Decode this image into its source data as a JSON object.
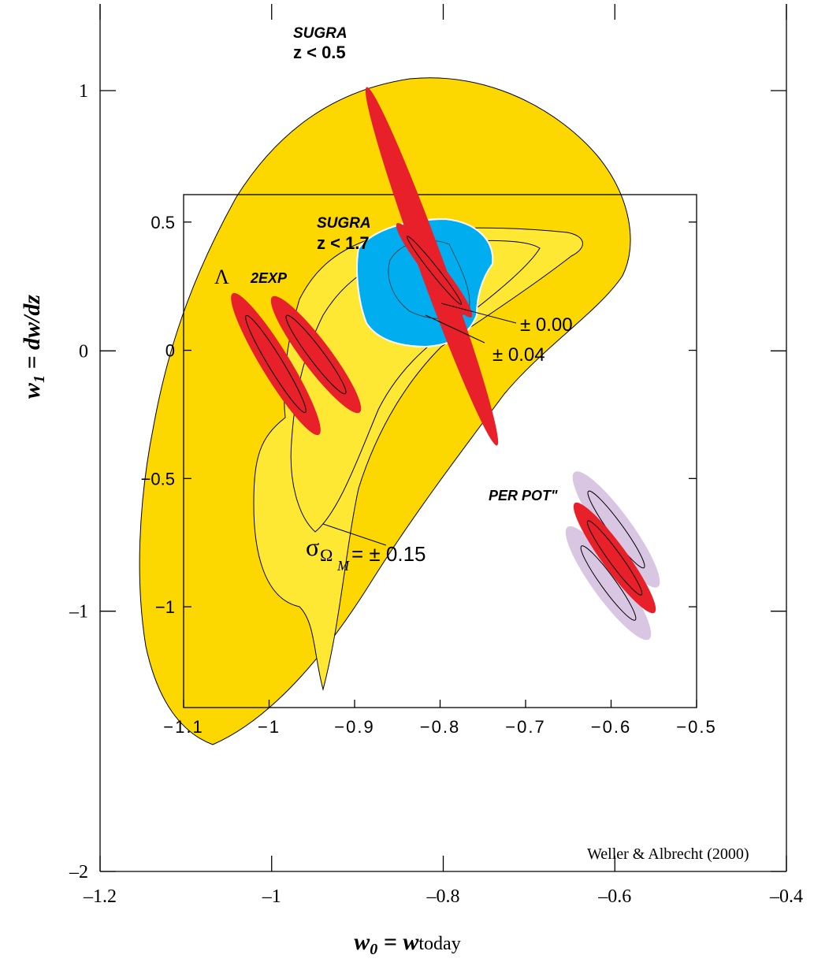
{
  "chart_data": [
    {
      "type": "contour",
      "x_label": [
        "w",
        "0",
        " = w",
        "today"
      ],
      "y_label": [
        "w",
        "1",
        " = dw/dz"
      ],
      "xlim": [
        -1.2,
        -0.4
      ],
      "ylim": [
        -2,
        1.333
      ],
      "xticks": [
        {
          "value": -1.2,
          "label": "–1.2"
        },
        {
          "value": -1,
          "label": "–1"
        },
        {
          "value": -0.8,
          "label": "–0.8"
        },
        {
          "value": -0.6,
          "label": "–0.6"
        },
        {
          "value": -0.4,
          "label": "–0.4"
        }
      ],
      "yticks": [
        1,
        0,
        {
          "value": -1,
          "label": "–1"
        },
        {
          "value": -2,
          "label": "–2"
        }
      ],
      "annotations": [
        "SUGRA",
        "z < 0.5",
        "SUGRA",
        "z < 1.7",
        "Λ",
        "2EXP",
        "PER POT\"",
        "± 0.00",
        "± 0.04",
        "σ",
        "Ω",
        "M",
        "= ± 0.15",
        "Weller & Albrecht (2000)"
      ]
    },
    {
      "type": "contour",
      "xlim": [
        -1.1,
        -0.5
      ],
      "ylim": [
        -1.393,
        0.607
      ],
      "xticks": [
        {
          "value": -1.1,
          "label": "−1.1"
        },
        {
          "value": -1,
          "label": "−1"
        },
        {
          "value": -0.9,
          "label": "−0.9"
        },
        {
          "value": -0.8,
          "label": "−0.8"
        },
        {
          "value": -0.7,
          "label": "−0.7"
        },
        {
          "value": -0.6,
          "label": "−0.6"
        },
        {
          "value": -0.5,
          "label": "−0.5"
        }
      ],
      "yticks": [
        0.5,
        0,
        {
          "value": -0.5,
          "label": "−0.5"
        },
        {
          "value": -1,
          "label": "−1"
        }
      ]
    }
  ]
}
